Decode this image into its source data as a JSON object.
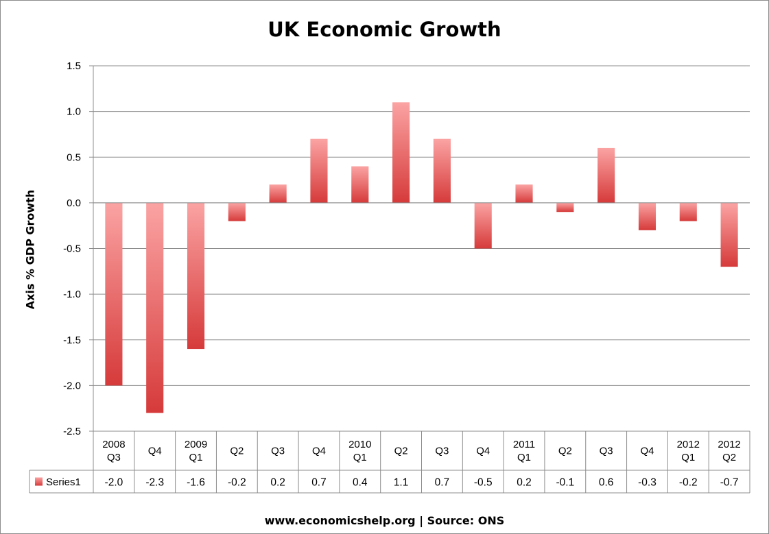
{
  "chart_data": {
    "type": "bar",
    "title": "UK Economic Growth",
    "ylabel": "Axis % GDP Growth",
    "footer": "www.economicshelp.org | Source: ONS",
    "ylim": [
      -2.5,
      1.5
    ],
    "y_ticks": [
      "1.5",
      "1.0",
      "0.5",
      "0.0",
      "-0.5",
      "-1.0",
      "-1.5",
      "-2.0",
      "-2.5"
    ],
    "grid": true,
    "categories": [
      [
        "2008",
        "Q3"
      ],
      [
        "Q4"
      ],
      [
        "2009",
        "Q1"
      ],
      [
        "Q2"
      ],
      [
        "Q3"
      ],
      [
        "Q4"
      ],
      [
        "2010",
        "Q1"
      ],
      [
        "Q2"
      ],
      [
        "Q3"
      ],
      [
        "Q4"
      ],
      [
        "2011",
        "Q1"
      ],
      [
        "Q2"
      ],
      [
        "Q3"
      ],
      [
        "Q4"
      ],
      [
        "2012",
        "Q1"
      ],
      [
        "2012",
        "Q2"
      ]
    ],
    "series": [
      {
        "name": "Series1",
        "values": [
          -2.0,
          -2.3,
          -1.6,
          -0.2,
          0.2,
          0.7,
          0.4,
          1.1,
          0.7,
          -0.5,
          0.2,
          -0.1,
          0.6,
          -0.3,
          -0.2,
          -0.7
        ],
        "value_labels": [
          "-2.0",
          "-2.3",
          "-1.6",
          "-0.2",
          "0.2",
          "0.7",
          "0.4",
          "1.1",
          "0.7",
          "-0.5",
          "0.2",
          "-0.1",
          "0.6",
          "-0.3",
          "-0.2",
          "-0.7"
        ]
      }
    ],
    "bar_color_light": "#fba3a3",
    "bar_color_dark": "#d63a3a",
    "gridline_color": "#8c8c8c",
    "legend": "data-table"
  }
}
